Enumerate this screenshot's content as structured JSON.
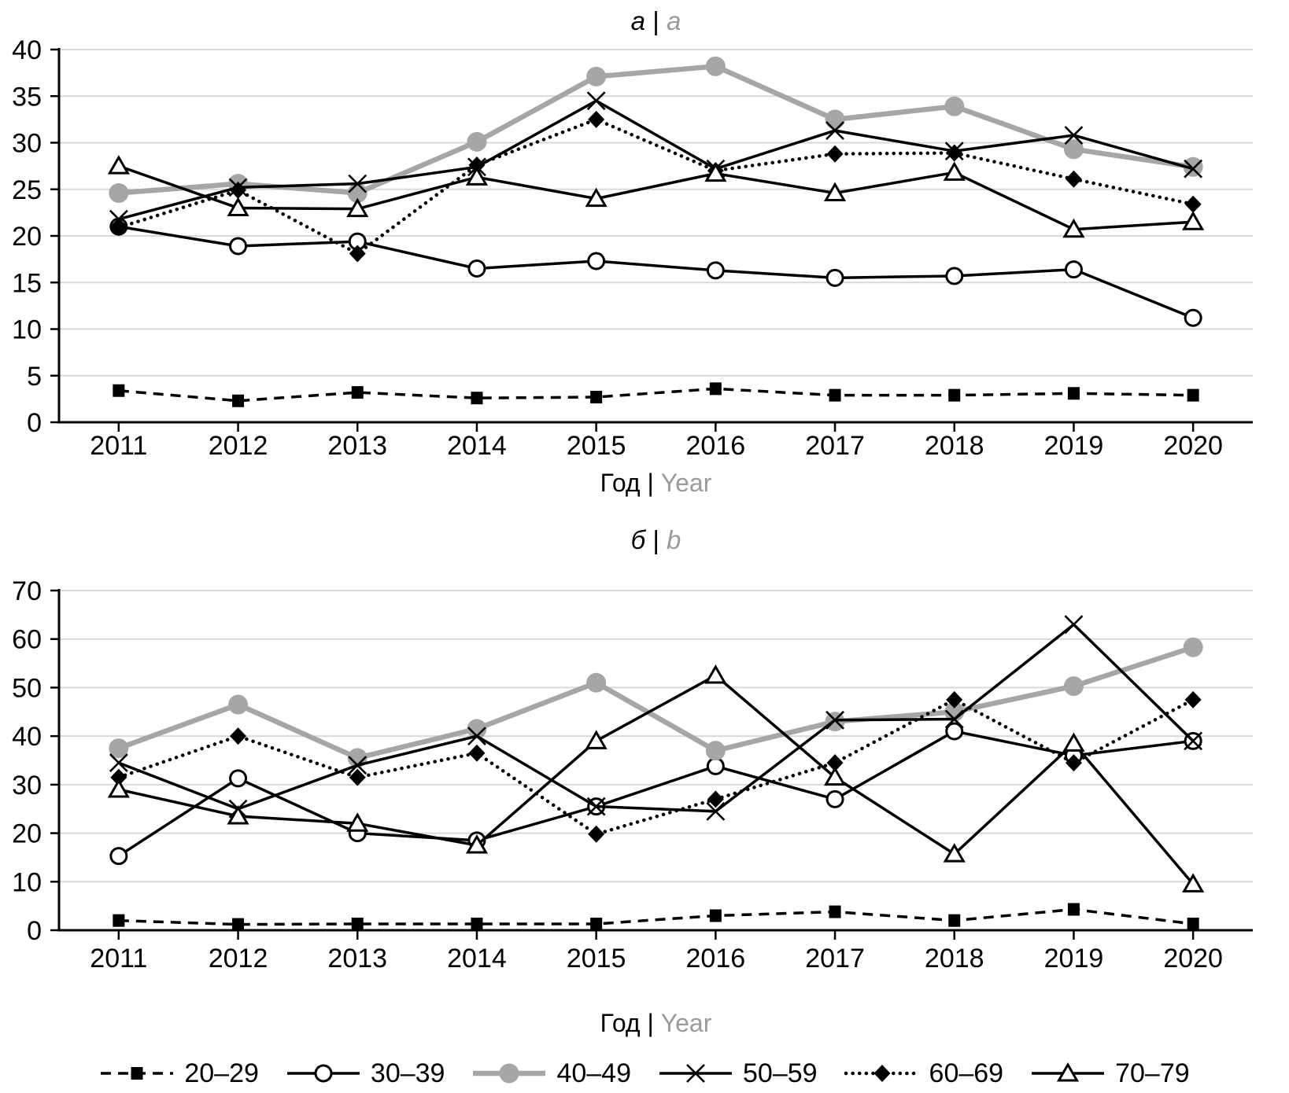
{
  "colors": {
    "black": "#000000",
    "series_gray": "#a6a6a6",
    "title_gray": "#9a9a9a",
    "gridline": "#d9d9d9",
    "background": "#ffffff"
  },
  "legend": {
    "items": [
      {
        "label": "20–29",
        "style": "dashed-square"
      },
      {
        "label": "30–39",
        "style": "solid-opencircle"
      },
      {
        "label": "40–49",
        "style": "gray-circle"
      },
      {
        "label": "50–59",
        "style": "solid-x"
      },
      {
        "label": "60–69",
        "style": "dotted-diamond"
      },
      {
        "label": "70–79",
        "style": "solid-triangle"
      }
    ]
  },
  "chart_data": [
    {
      "id": "a",
      "type": "line",
      "title": {
        "ru": "а",
        "sep": "|",
        "en": "a"
      },
      "xlabel": {
        "ru": "Год",
        "sep": "|",
        "en": "Year"
      },
      "categories": [
        "2011",
        "2012",
        "2013",
        "2014",
        "2015",
        "2016",
        "2017",
        "2018",
        "2019",
        "2020"
      ],
      "ylim": [
        0,
        40
      ],
      "ytick_step": 5,
      "grid": true,
      "legend_position": "shared-bottom",
      "series": [
        {
          "name": "20–29",
          "style": "dashed-square",
          "values": [
            3.4,
            2.3,
            3.2,
            2.6,
            2.7,
            3.6,
            2.9,
            2.9,
            3.1,
            2.9
          ]
        },
        {
          "name": "30–39",
          "style": "solid-opencircle",
          "values": [
            21.0,
            18.9,
            19.4,
            16.5,
            17.3,
            16.3,
            15.5,
            15.7,
            16.4,
            11.2
          ]
        },
        {
          "name": "40–49",
          "style": "gray-circle",
          "values": [
            24.6,
            25.6,
            24.6,
            30.1,
            37.1,
            38.2,
            32.5,
            33.9,
            29.3,
            27.4
          ]
        },
        {
          "name": "50–59",
          "style": "solid-x",
          "values": [
            21.8,
            25.2,
            25.6,
            27.4,
            34.5,
            27.2,
            31.3,
            29.1,
            30.8,
            27.2
          ]
        },
        {
          "name": "60–69",
          "style": "dotted-diamond",
          "values": [
            20.9,
            24.9,
            18.1,
            27.6,
            32.5,
            27.0,
            28.8,
            28.9,
            26.1,
            23.4
          ]
        },
        {
          "name": "70–79",
          "style": "solid-triangle",
          "values": [
            27.5,
            23.0,
            22.9,
            26.3,
            24.0,
            26.7,
            24.6,
            26.8,
            20.7,
            21.5
          ]
        }
      ]
    },
    {
      "id": "b",
      "type": "line",
      "title": {
        "ru": "б",
        "sep": "|",
        "en": "b"
      },
      "xlabel": {
        "ru": "Год",
        "sep": "|",
        "en": "Year"
      },
      "categories": [
        "2011",
        "2012",
        "2013",
        "2014",
        "2015",
        "2016",
        "2017",
        "2018",
        "2019",
        "2020"
      ],
      "ylim": [
        0,
        70
      ],
      "ytick_step": 10,
      "grid": true,
      "legend_position": "shared-bottom",
      "series": [
        {
          "name": "20–29",
          "style": "dashed-square",
          "values": [
            2.0,
            1.2,
            1.3,
            1.3,
            1.3,
            3.0,
            3.8,
            2.0,
            4.3,
            1.3
          ]
        },
        {
          "name": "30–39",
          "style": "solid-opencircle",
          "values": [
            15.3,
            31.3,
            20.0,
            18.5,
            25.5,
            33.8,
            27.0,
            41.0,
            36.0,
            39.0
          ]
        },
        {
          "name": "40–49",
          "style": "gray-circle",
          "values": [
            37.5,
            46.5,
            35.5,
            41.5,
            51.0,
            37.0,
            43.0,
            45.0,
            50.3,
            58.3
          ]
        },
        {
          "name": "50–59",
          "style": "solid-x",
          "values": [
            34.5,
            25.0,
            34.0,
            40.0,
            25.5,
            24.5,
            43.3,
            43.5,
            63.0,
            39.0
          ]
        },
        {
          "name": "60–69",
          "style": "dotted-diamond",
          "values": [
            31.5,
            40.0,
            31.5,
            36.5,
            19.8,
            27.0,
            34.5,
            47.5,
            34.5,
            47.5
          ]
        },
        {
          "name": "70–79",
          "style": "solid-triangle",
          "values": [
            29.0,
            23.5,
            22.0,
            17.5,
            39.0,
            52.5,
            31.5,
            15.7,
            38.5,
            9.5
          ]
        }
      ]
    }
  ]
}
